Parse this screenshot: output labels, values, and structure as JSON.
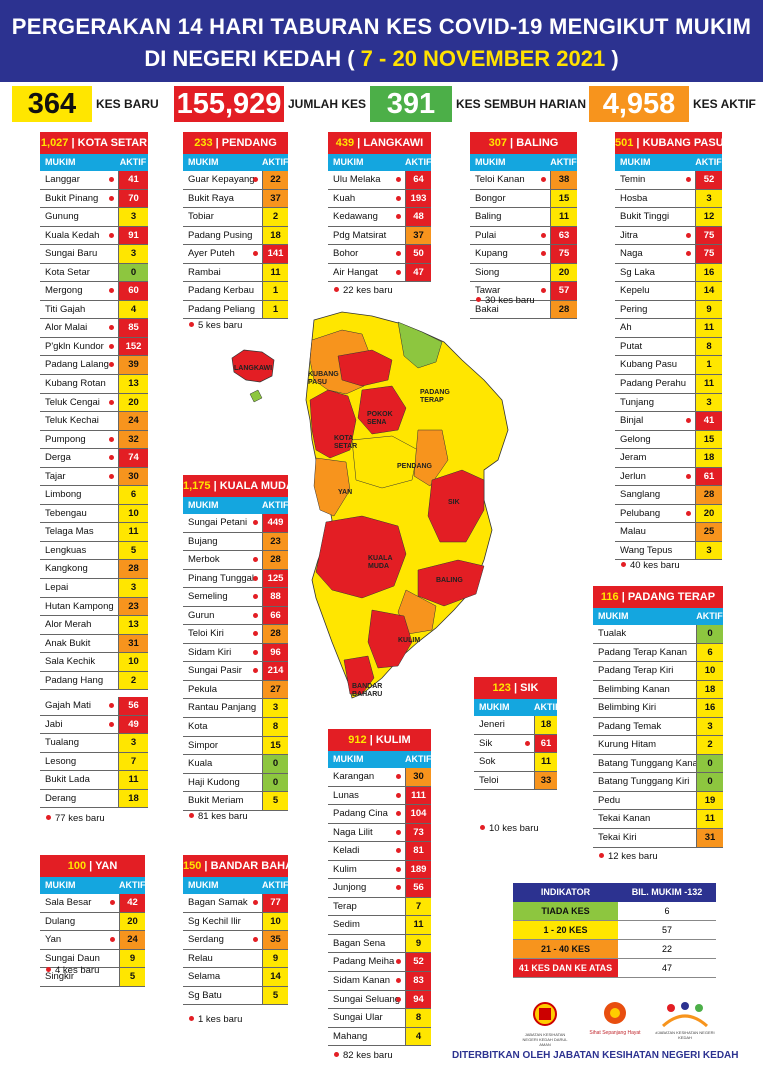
{
  "header": {
    "line1": "PERGERAKAN 14 HARI TABURAN KES COVID-19 MENGIKUT MUKIM",
    "line2a": "DI NEGERI KEDAH (",
    "line2b": " 7 - 20 NOVEMBER 2021 ",
    "line2c": ")"
  },
  "stats": [
    {
      "value": "364",
      "label": "KES BARU",
      "color": "#ffe600"
    },
    {
      "value": "155,929",
      "label": "JUMLAH KES",
      "color": "#e31e24"
    },
    {
      "value": "391",
      "label": "KES SEMBUH HARIAN",
      "color": "#4caf48"
    },
    {
      "value": "4,958",
      "label": "KES AKTIF",
      "color": "#f7941d"
    }
  ],
  "colors": {
    "red": "#e31e24",
    "orange": "#f7941d",
    "yellow": "#ffe600",
    "green": "#8dc63f"
  },
  "col_mukim": "MUKIM",
  "col_aktif": "AKTIF",
  "tables": [
    {
      "id": "kota-setar",
      "count": "1,027",
      "name": "KOTA SETAR",
      "rows": [
        [
          "Langgar",
          41
        ],
        [
          "Bukit Pinang",
          70
        ],
        [
          "Gunung",
          3
        ],
        [
          "Kuala Kedah",
          91
        ],
        [
          "Sungai Baru",
          3
        ],
        [
          "Kota Setar",
          0
        ],
        [
          "Mergong",
          60
        ],
        [
          "Titi Gajah",
          4
        ],
        [
          "Alor Malai",
          85
        ],
        [
          "P'gkln Kundor",
          152
        ],
        [
          "Padang Lalang",
          39
        ],
        [
          "Kubang Rotan",
          13
        ],
        [
          "Teluk Cengai",
          20
        ],
        [
          "Teluk Kechai",
          24
        ],
        [
          "Pumpong",
          32
        ],
        [
          "Derga",
          74
        ],
        [
          "Tajar",
          30
        ],
        [
          "Limbong",
          6
        ],
        [
          "Tebengau",
          10
        ],
        [
          "Telaga Mas",
          11
        ],
        [
          "Lengkuas",
          5
        ],
        [
          "Kangkong",
          28
        ],
        [
          "Lepai",
          3
        ],
        [
          "Hutan Kampong",
          23
        ],
        [
          "Alor Merah",
          13
        ],
        [
          "Anak Bukit",
          31
        ],
        [
          "Sala Kechik",
          10
        ],
        [
          "Padang Hang",
          2
        ]
      ]
    },
    {
      "id": "kota-setar-2",
      "count": "",
      "name": "",
      "rows": [
        [
          "Gajah Mati",
          56
        ],
        [
          "Jabi",
          49
        ],
        [
          "Tualang",
          3
        ],
        [
          "Lesong",
          7
        ],
        [
          "Bukit Lada",
          11
        ],
        [
          "Derang",
          18
        ]
      ],
      "baru": "77 kes baru"
    },
    {
      "id": "pendang",
      "count": "233",
      "name": "PENDANG",
      "rows": [
        [
          "Guar Kepayang",
          22
        ],
        [
          "Bukit Raya",
          37
        ],
        [
          "Tobiar",
          2
        ],
        [
          "Padang Pusing",
          18
        ],
        [
          "Ayer Puteh",
          141
        ],
        [
          "Rambai",
          11
        ],
        [
          "Padang Kerbau",
          1
        ],
        [
          "Padang Peliang",
          1
        ]
      ],
      "baru": "5 kes baru"
    },
    {
      "id": "langkawi",
      "count": "439",
      "name": "LANGKAWI",
      "rows": [
        [
          "Ulu Melaka",
          64
        ],
        [
          "Kuah",
          193
        ],
        [
          "Kedawang",
          48
        ],
        [
          "Pdg Matsirat",
          37
        ],
        [
          "Bohor",
          50
        ],
        [
          "Air Hangat",
          47
        ]
      ],
      "baru": "22 kes baru"
    },
    {
      "id": "baling",
      "count": "307",
      "name": "BALING",
      "rows": [
        [
          "Teloi Kanan",
          38
        ],
        [
          "Bongor",
          15
        ],
        [
          "Baling",
          11
        ],
        [
          "Pulai",
          63
        ],
        [
          "Kupang",
          75
        ],
        [
          "Siong",
          20
        ],
        [
          "Tawar",
          57
        ],
        [
          "Bakai",
          28
        ]
      ],
      "baru": "30 kes baru"
    },
    {
      "id": "kubang-pasu",
      "count": "501",
      "name": "KUBANG PASU",
      "rows": [
        [
          "Temin",
          52
        ],
        [
          "Hosba",
          3
        ],
        [
          "Bukit Tinggi",
          12
        ],
        [
          "Jitra",
          75
        ],
        [
          "Naga",
          75
        ],
        [
          "Sg Laka",
          16
        ],
        [
          "Kepelu",
          14
        ],
        [
          "Pering",
          9
        ],
        [
          "Ah",
          11
        ],
        [
          "Putat",
          8
        ],
        [
          "Kubang Pasu",
          1
        ],
        [
          "Padang Perahu",
          11
        ],
        [
          "Tunjang",
          3
        ],
        [
          "Binjal",
          41
        ],
        [
          "Gelong",
          15
        ],
        [
          "Jeram",
          18
        ],
        [
          "Jerlun",
          61
        ],
        [
          "Sanglang",
          28
        ],
        [
          "Pelubang",
          20
        ],
        [
          "Malau",
          25
        ],
        [
          "Wang Tepus",
          3
        ]
      ],
      "baru": "40 kes baru"
    },
    {
      "id": "kuala-muda",
      "count": "1,175",
      "name": "KUALA MUDA",
      "rows": [
        [
          "Sungai Petani",
          449
        ],
        [
          "Bujang",
          23
        ],
        [
          "Merbok",
          28
        ],
        [
          "Pinang Tunggal",
          125
        ],
        [
          "Semeling",
          88
        ],
        [
          "Gurun",
          66
        ],
        [
          "Teloi Kiri",
          28
        ],
        [
          "Sidam Kiri",
          96
        ],
        [
          "Sungai Pasir",
          214
        ],
        [
          "Pekula",
          27
        ],
        [
          "Rantau Panjang",
          3
        ],
        [
          "Kota",
          8
        ],
        [
          "Simpor",
          15
        ],
        [
          "Kuala",
          0
        ],
        [
          "Haji Kudong",
          0
        ],
        [
          "Bukit Meriam",
          5
        ]
      ],
      "baru": "81 kes baru"
    },
    {
      "id": "padang-terap",
      "count": "116",
      "name": "PADANG TERAP",
      "rows": [
        [
          "Tualak",
          0
        ],
        [
          "Padang Terap Kanan",
          6
        ],
        [
          "Padang Terap Kiri",
          10
        ],
        [
          "Belimbing Kanan",
          18
        ],
        [
          "Belimbing Kiri",
          16
        ],
        [
          "Padang Temak",
          3
        ],
        [
          "Kurung Hitam",
          2
        ],
        [
          "Batang Tunggang Kanan",
          0
        ],
        [
          "Batang Tunggang Kiri",
          0
        ],
        [
          "Pedu",
          19
        ],
        [
          "Tekai Kanan",
          11
        ],
        [
          "Tekai Kiri",
          31
        ]
      ],
      "baru": "12 kes baru"
    },
    {
      "id": "sik",
      "count": "123",
      "name": "SIK",
      "rows": [
        [
          "Jeneri",
          18
        ],
        [
          "Sik",
          61
        ],
        [
          "Sok",
          11
        ],
        [
          "Teloi",
          33
        ]
      ],
      "baru": "10 kes baru"
    },
    {
      "id": "kulim",
      "count": "912",
      "name": "KULIM",
      "rows": [
        [
          "Karangan",
          30
        ],
        [
          "Lunas",
          111
        ],
        [
          "Padang Cina",
          104
        ],
        [
          "Naga Lilit",
          73
        ],
        [
          "Keladi",
          81
        ],
        [
          "Kulim",
          189
        ],
        [
          "Junjong",
          56
        ],
        [
          "Terap",
          7
        ],
        [
          "Sedim",
          11
        ],
        [
          "Bagan Sena",
          9
        ],
        [
          "Padang Meiha",
          52
        ],
        [
          "Sidam Kanan",
          83
        ],
        [
          "Sungai Seluang",
          94
        ],
        [
          "Sungai Ular",
          8
        ],
        [
          "Mahang",
          4
        ]
      ],
      "baru": "82 kes baru"
    },
    {
      "id": "yan",
      "count": "100",
      "name": "YAN",
      "rows": [
        [
          "Sala Besar",
          42
        ],
        [
          "Dulang",
          20
        ],
        [
          "Yan",
          24
        ],
        [
          "Sungai Daun",
          9
        ],
        [
          "Singkir",
          5
        ]
      ],
      "baru": "4 kes baru"
    },
    {
      "id": "bandar-baharu",
      "count": "150",
      "name": "BANDAR BAHARU",
      "rows": [
        [
          "Bagan Samak",
          77
        ],
        [
          "Sg Kechil Ilir",
          10
        ],
        [
          "Serdang",
          35
        ],
        [
          "Relau",
          9
        ],
        [
          "Selama",
          14
        ],
        [
          "Sg Batu",
          5
        ]
      ],
      "baru": "1 kes baru"
    }
  ],
  "legend": {
    "h1": "INDIKATOR",
    "h2": "BIL. MUKIM -132",
    "rows": [
      [
        "TIADA KES",
        "6",
        "#8dc63f"
      ],
      [
        "1 - 20 KES",
        "57",
        "#ffe600"
      ],
      [
        "21 - 40 KES",
        "22",
        "#f7941d"
      ],
      [
        "41 KES DAN KE ATAS",
        "47",
        "#e31e24"
      ]
    ]
  },
  "map_labels": [
    "LANGKAWI",
    "KUBANG PASU",
    "PADANG TERAP",
    "POKOK SENA",
    "KOTA SETAR",
    "PENDANG",
    "YAN",
    "SIK",
    "KUALA MUDA",
    "BALING",
    "KULIM",
    "BANDAR BAHARU"
  ],
  "footer": "DITERBITKAN OLEH JABATAN KESIHATAN NEGERI KEDAH",
  "logos": [
    "JABATAN KESIHATAN NEGERI KEDAH DARUL AMAN",
    "Sihat Sepanjang Hayat",
    "#JABATAN KESIHATAN NEGERI KEDAH"
  ]
}
